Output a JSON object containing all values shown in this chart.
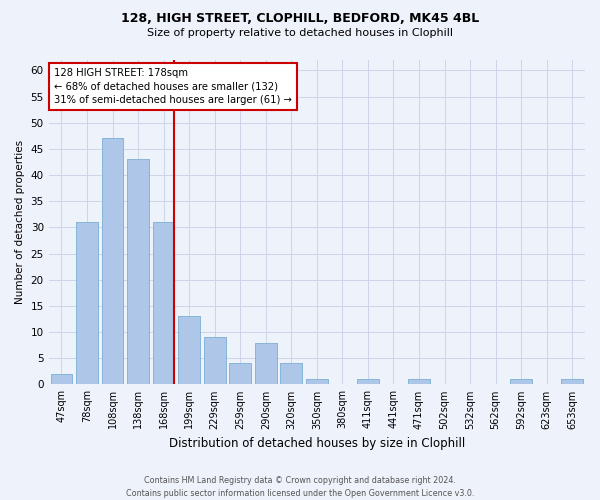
{
  "title1": "128, HIGH STREET, CLOPHILL, BEDFORD, MK45 4BL",
  "title2": "Size of property relative to detached houses in Clophill",
  "xlabel": "Distribution of detached houses by size in Clophill",
  "ylabel": "Number of detached properties",
  "footer1": "Contains HM Land Registry data © Crown copyright and database right 2024.",
  "footer2": "Contains public sector information licensed under the Open Government Licence v3.0.",
  "bin_labels": [
    "47sqm",
    "78sqm",
    "108sqm",
    "138sqm",
    "168sqm",
    "199sqm",
    "229sqm",
    "259sqm",
    "290sqm",
    "320sqm",
    "350sqm",
    "380sqm",
    "411sqm",
    "441sqm",
    "471sqm",
    "502sqm",
    "532sqm",
    "562sqm",
    "592sqm",
    "623sqm",
    "653sqm"
  ],
  "bar_heights": [
    2,
    31,
    47,
    43,
    31,
    13,
    9,
    4,
    8,
    4,
    1,
    0,
    1,
    0,
    1,
    0,
    0,
    0,
    1,
    0,
    1
  ],
  "bar_color": "#aec6e8",
  "bar_edge_color": "#7bafd4",
  "highlight_bar_index": 4,
  "vline_color": "#cc0000",
  "ylim": [
    0,
    62
  ],
  "yticks": [
    0,
    5,
    10,
    15,
    20,
    25,
    30,
    35,
    40,
    45,
    50,
    55,
    60
  ],
  "annotation_text": "128 HIGH STREET: 178sqm\n← 68% of detached houses are smaller (132)\n31% of semi-detached houses are larger (61) →",
  "annotation_box_color": "#ffffff",
  "annotation_box_edge": "#cc0000",
  "grid_color": "#ccd6e8",
  "background_color": "#eef2fa"
}
